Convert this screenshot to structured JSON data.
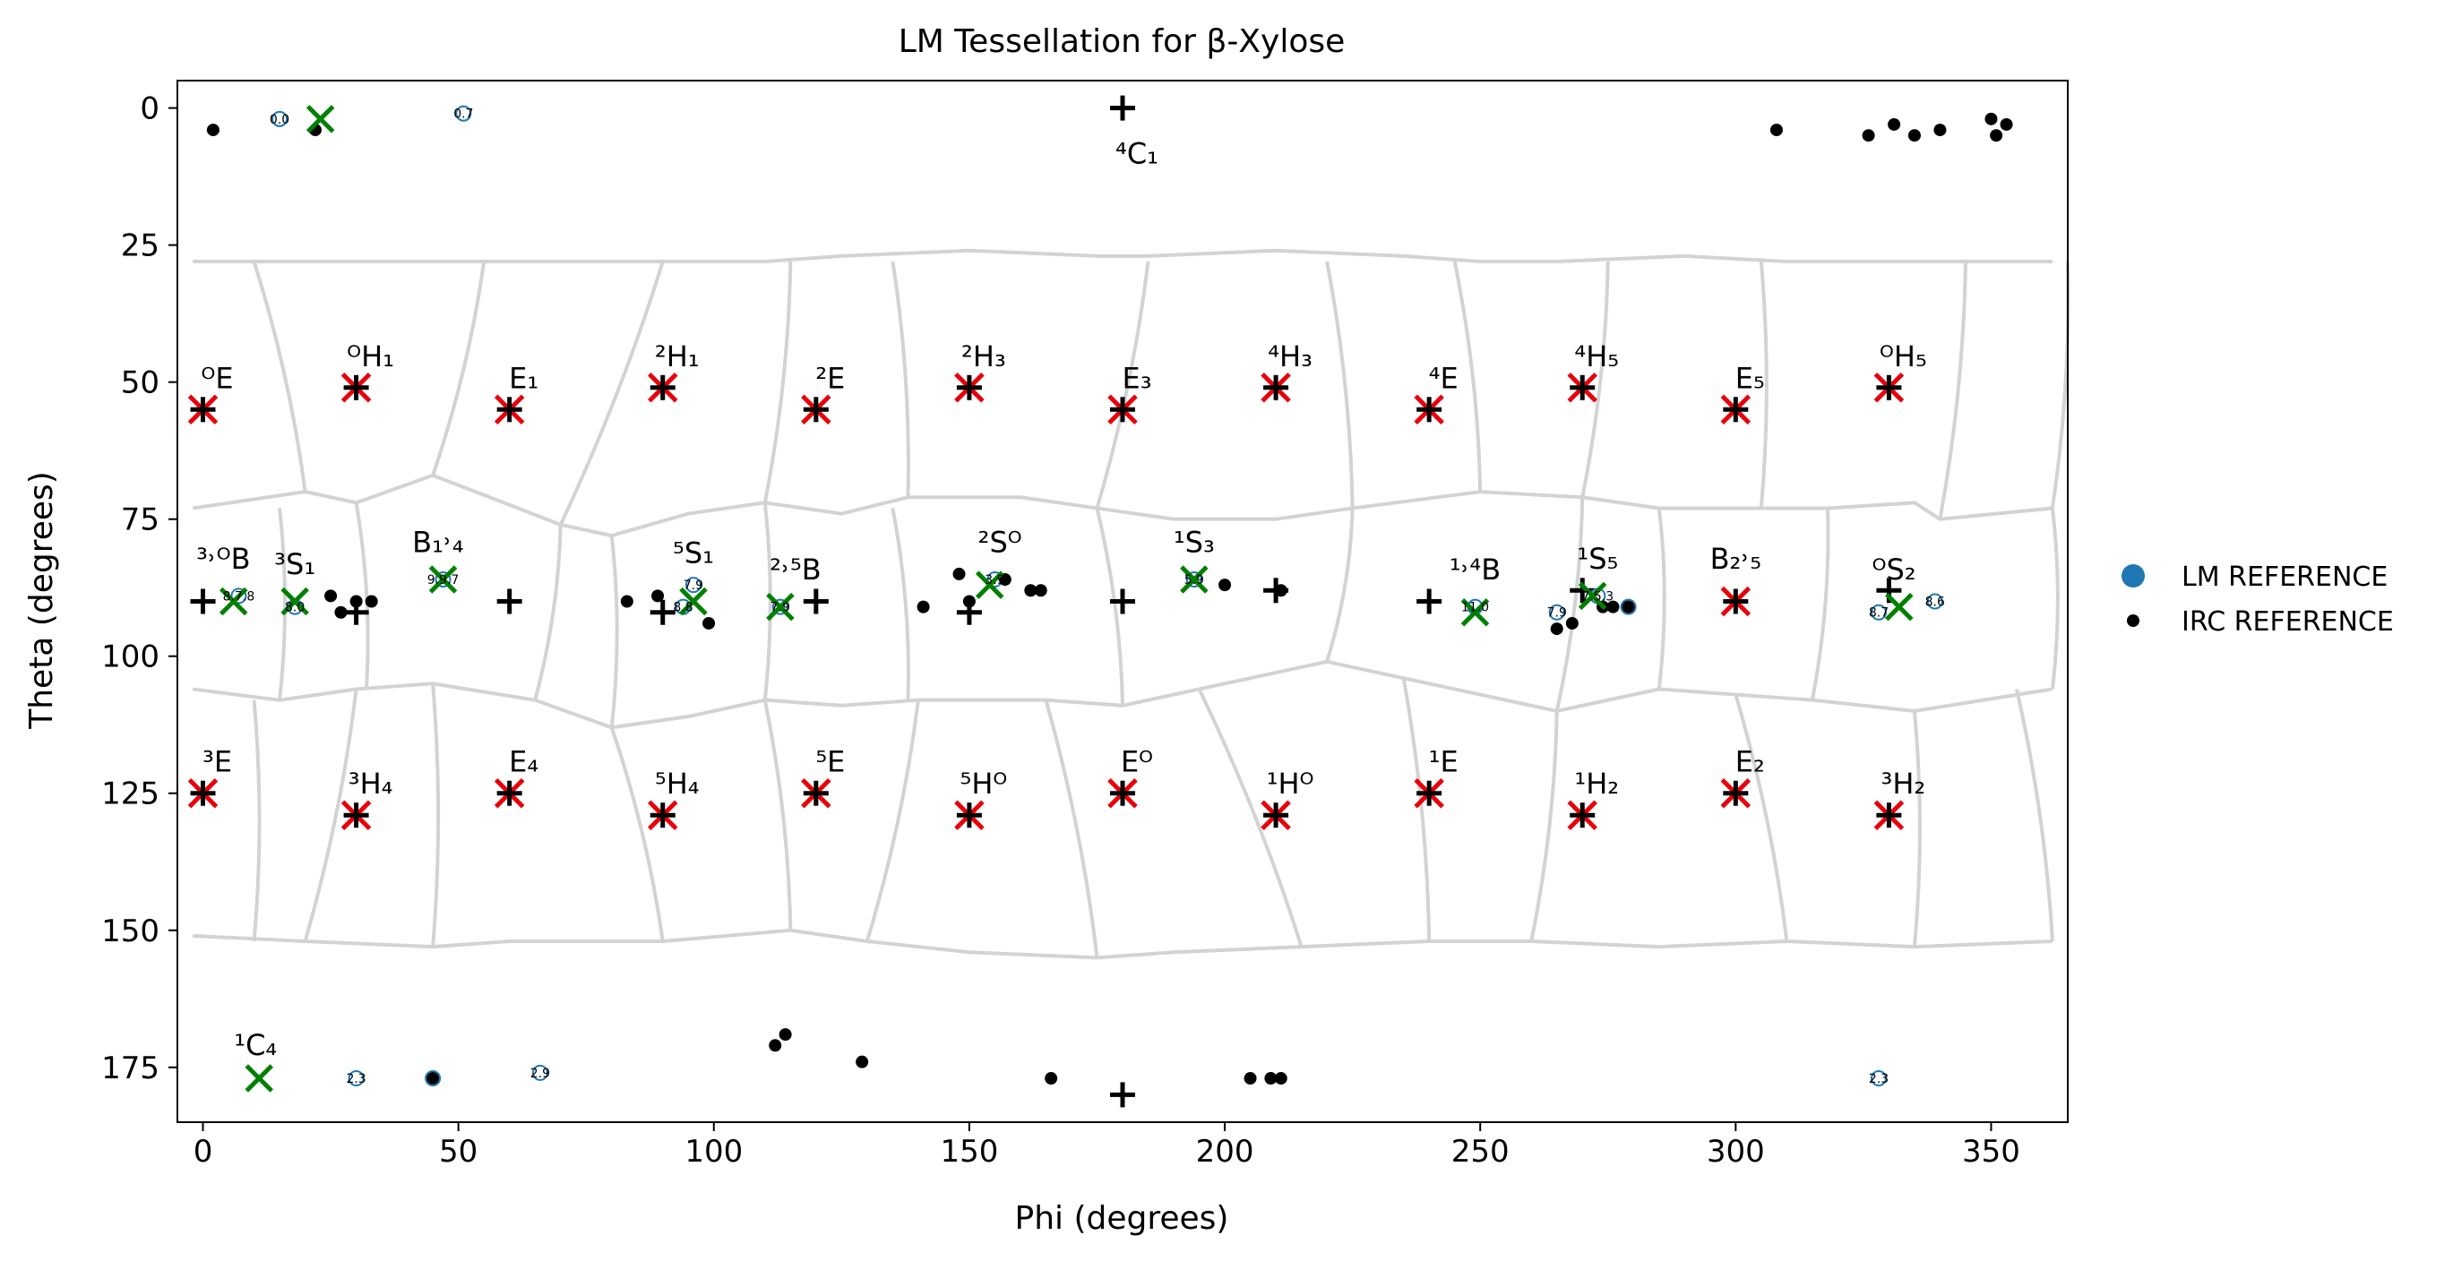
{
  "chart_data": {
    "type": "scatter",
    "title": "LM Tessellation for β-Xylose",
    "xlabel": "Phi (degrees)",
    "ylabel": "Theta (degrees)",
    "xlim": [
      -5,
      365
    ],
    "ylim": [
      185,
      -5
    ],
    "y_inverted": true,
    "grid": false,
    "x_ticks": [
      0,
      50,
      100,
      150,
      200,
      250,
      300,
      350
    ],
    "y_ticks": [
      0,
      25,
      50,
      75,
      100,
      125,
      150,
      175
    ],
    "legend": {
      "placement": "outside-right",
      "entries": [
        {
          "label": "LM REFERENCE",
          "marker": "circle",
          "color": "#1f77b4"
        },
        {
          "label": "IRC REFERENCE",
          "marker": "dot",
          "color": "#000000"
        }
      ]
    },
    "colors": {
      "lm_reference": "#1f77b4",
      "irc_reference": "#000000",
      "canonical_marker": "#000000",
      "tessellation_center": "#e8000b",
      "lm_center": "#008000",
      "tessellation_boundary": "#d3d3d3"
    },
    "canonical_conformers": [
      {
        "phi": 180,
        "theta": 0,
        "label": "⁴C₁"
      },
      {
        "phi": 180,
        "theta": 180,
        "label": ""
      },
      {
        "phi": 0,
        "theta": 55,
        "label": "ᴼE"
      },
      {
        "phi": 30,
        "theta": 51,
        "label": "ᴼH₁"
      },
      {
        "phi": 60,
        "theta": 55,
        "label": "E₁"
      },
      {
        "phi": 90,
        "theta": 51,
        "label": "²H₁"
      },
      {
        "phi": 120,
        "theta": 55,
        "label": "²E"
      },
      {
        "phi": 150,
        "theta": 51,
        "label": "²H₃"
      },
      {
        "phi": 180,
        "theta": 55,
        "label": "E₃"
      },
      {
        "phi": 210,
        "theta": 51,
        "label": "⁴H₃"
      },
      {
        "phi": 240,
        "theta": 55,
        "label": "⁴E"
      },
      {
        "phi": 270,
        "theta": 51,
        "label": "⁴H₅"
      },
      {
        "phi": 300,
        "theta": 55,
        "label": "E₅"
      },
      {
        "phi": 330,
        "theta": 51,
        "label": "ᴼH₅"
      },
      {
        "phi": 0,
        "theta": 90,
        "label": ""
      },
      {
        "phi": 30,
        "theta": 92,
        "label": ""
      },
      {
        "phi": 60,
        "theta": 90,
        "label": ""
      },
      {
        "phi": 90,
        "theta": 92,
        "label": ""
      },
      {
        "phi": 120,
        "theta": 90,
        "label": ""
      },
      {
        "phi": 150,
        "theta": 92,
        "label": ""
      },
      {
        "phi": 180,
        "theta": 90,
        "label": ""
      },
      {
        "phi": 210,
        "theta": 88,
        "label": ""
      },
      {
        "phi": 240,
        "theta": 90,
        "label": ""
      },
      {
        "phi": 270,
        "theta": 88,
        "label": ""
      },
      {
        "phi": 300,
        "theta": 90,
        "label": ""
      },
      {
        "phi": 330,
        "theta": 88,
        "label": ""
      },
      {
        "phi": 0,
        "theta": 125,
        "label": "³E"
      },
      {
        "phi": 30,
        "theta": 129,
        "label": "³H₄"
      },
      {
        "phi": 60,
        "theta": 125,
        "label": "E₄"
      },
      {
        "phi": 90,
        "theta": 129,
        "label": "⁵H₄"
      },
      {
        "phi": 120,
        "theta": 125,
        "label": "⁵E"
      },
      {
        "phi": 150,
        "theta": 129,
        "label": "⁵Hᴼ"
      },
      {
        "phi": 180,
        "theta": 125,
        "label": "Eᴼ"
      },
      {
        "phi": 210,
        "theta": 129,
        "label": "¹Hᴼ"
      },
      {
        "phi": 240,
        "theta": 125,
        "label": "¹E"
      },
      {
        "phi": 270,
        "theta": 129,
        "label": "¹H₂"
      },
      {
        "phi": 300,
        "theta": 125,
        "label": "E₂"
      },
      {
        "phi": 330,
        "theta": 129,
        "label": "³H₂"
      }
    ],
    "tessellation_center_markers": [
      {
        "phi": 0,
        "theta": 55
      },
      {
        "phi": 30,
        "theta": 51
      },
      {
        "phi": 60,
        "theta": 55
      },
      {
        "phi": 90,
        "theta": 51
      },
      {
        "phi": 120,
        "theta": 55
      },
      {
        "phi": 150,
        "theta": 51
      },
      {
        "phi": 180,
        "theta": 55
      },
      {
        "phi": 210,
        "theta": 51
      },
      {
        "phi": 240,
        "theta": 55
      },
      {
        "phi": 270,
        "theta": 51
      },
      {
        "phi": 300,
        "theta": 55
      },
      {
        "phi": 330,
        "theta": 51
      },
      {
        "phi": 0,
        "theta": 125
      },
      {
        "phi": 30,
        "theta": 129
      },
      {
        "phi": 60,
        "theta": 125
      },
      {
        "phi": 90,
        "theta": 129
      },
      {
        "phi": 120,
        "theta": 125
      },
      {
        "phi": 150,
        "theta": 129
      },
      {
        "phi": 180,
        "theta": 125
      },
      {
        "phi": 210,
        "theta": 129
      },
      {
        "phi": 240,
        "theta": 125
      },
      {
        "phi": 270,
        "theta": 129
      },
      {
        "phi": 300,
        "theta": 125
      },
      {
        "phi": 330,
        "theta": 129
      },
      {
        "phi": 300,
        "theta": 90
      }
    ],
    "lm_centers": [
      {
        "phi": 23,
        "theta": 2
      },
      {
        "phi": 6,
        "theta": 90
      },
      {
        "phi": 18,
        "theta": 90
      },
      {
        "phi": 47,
        "theta": 86
      },
      {
        "phi": 96,
        "theta": 90
      },
      {
        "phi": 113,
        "theta": 91
      },
      {
        "phi": 154,
        "theta": 87
      },
      {
        "phi": 194,
        "theta": 86
      },
      {
        "phi": 249,
        "theta": 92
      },
      {
        "phi": 272,
        "theta": 89
      },
      {
        "phi": 332,
        "theta": 91
      },
      {
        "phi": 11,
        "theta": 177
      }
    ],
    "lm_reference_points": [
      {
        "phi": 15,
        "theta": 2,
        "label": "0.0"
      },
      {
        "phi": 51,
        "theta": 1,
        "label": "0.7"
      },
      {
        "phi": 7,
        "theta": 89,
        "label": "8.7.8"
      },
      {
        "phi": 18,
        "theta": 91,
        "label": "8.0"
      },
      {
        "phi": 47,
        "theta": 86,
        "label": "9.9.7"
      },
      {
        "phi": 96,
        "theta": 87,
        "label": "7.9"
      },
      {
        "phi": 94,
        "theta": 91,
        "label": "8.8"
      },
      {
        "phi": 113,
        "theta": 91,
        "label": "7.9"
      },
      {
        "phi": 155,
        "theta": 86,
        "label": "3.9"
      },
      {
        "phi": 194,
        "theta": 86,
        "label": "5.9"
      },
      {
        "phi": 249,
        "theta": 91,
        "label": "11.0"
      },
      {
        "phi": 265,
        "theta": 92,
        "label": "7.9"
      },
      {
        "phi": 273,
        "theta": 89,
        "label": "7.5.3"
      },
      {
        "phi": 279,
        "theta": 91,
        "label": ""
      },
      {
        "phi": 328,
        "theta": 92,
        "label": "8.7"
      },
      {
        "phi": 339,
        "theta": 90,
        "label": "8.6"
      },
      {
        "phi": 30,
        "theta": 177,
        "label": "2.3"
      },
      {
        "phi": 45,
        "theta": 177,
        "label": ""
      },
      {
        "phi": 66,
        "theta": 176,
        "label": "2.9"
      },
      {
        "phi": 328,
        "theta": 177,
        "label": "2.3"
      }
    ],
    "irc_reference_points": [
      {
        "phi": 2,
        "theta": 4
      },
      {
        "phi": 22,
        "theta": 4
      },
      {
        "phi": 308,
        "theta": 4
      },
      {
        "phi": 326,
        "theta": 5
      },
      {
        "phi": 331,
        "theta": 3
      },
      {
        "phi": 335,
        "theta": 5
      },
      {
        "phi": 340,
        "theta": 4
      },
      {
        "phi": 350,
        "theta": 2
      },
      {
        "phi": 351,
        "theta": 5
      },
      {
        "phi": 353,
        "theta": 3
      },
      {
        "phi": 25,
        "theta": 89
      },
      {
        "phi": 27,
        "theta": 92
      },
      {
        "phi": 30,
        "theta": 90
      },
      {
        "phi": 33,
        "theta": 90
      },
      {
        "phi": 83,
        "theta": 90
      },
      {
        "phi": 89,
        "theta": 89
      },
      {
        "phi": 99,
        "theta": 94
      },
      {
        "phi": 141,
        "theta": 91
      },
      {
        "phi": 148,
        "theta": 85
      },
      {
        "phi": 150,
        "theta": 90
      },
      {
        "phi": 157,
        "theta": 86
      },
      {
        "phi": 162,
        "theta": 88
      },
      {
        "phi": 164,
        "theta": 88
      },
      {
        "phi": 200,
        "theta": 87
      },
      {
        "phi": 211,
        "theta": 88
      },
      {
        "phi": 265,
        "theta": 95
      },
      {
        "phi": 268,
        "theta": 94
      },
      {
        "phi": 274,
        "theta": 91
      },
      {
        "phi": 276,
        "theta": 91
      },
      {
        "phi": 279,
        "theta": 91
      },
      {
        "phi": 45,
        "theta": 177
      },
      {
        "phi": 112,
        "theta": 171
      },
      {
        "phi": 114,
        "theta": 169
      },
      {
        "phi": 129,
        "theta": 174
      },
      {
        "phi": 166,
        "theta": 177
      },
      {
        "phi": 205,
        "theta": 177
      },
      {
        "phi": 209,
        "theta": 177
      },
      {
        "phi": 211,
        "theta": 177
      }
    ],
    "mid_row_labels": [
      {
        "phi": 4,
        "theta": 84,
        "label": "³˒ᴼB"
      },
      {
        "phi": 18,
        "theta": 85,
        "label": "³S₁"
      },
      {
        "phi": 46,
        "theta": 81,
        "label": "B₁˒₄"
      },
      {
        "phi": 96,
        "theta": 83,
        "label": "⁵S₁"
      },
      {
        "phi": 116,
        "theta": 86,
        "label": "²˒⁵B"
      },
      {
        "phi": 156,
        "theta": 81,
        "label": "²Sᴼ"
      },
      {
        "phi": 194,
        "theta": 81,
        "label": "¹S₃"
      },
      {
        "phi": 249,
        "theta": 86,
        "label": "¹˒⁴B"
      },
      {
        "phi": 273,
        "theta": 84,
        "label": "¹S₅"
      },
      {
        "phi": 300,
        "theta": 84,
        "label": "B₂˒₅"
      },
      {
        "phi": 331,
        "theta": 86,
        "label": "ᴼS₂"
      }
    ]
  }
}
